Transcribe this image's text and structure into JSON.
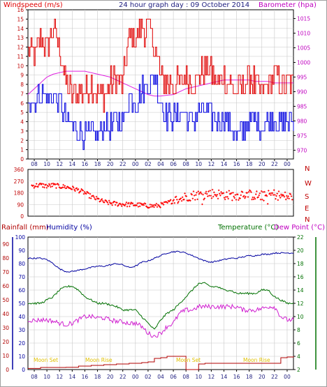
{
  "title": "24 hour graph day : 09 October 2014",
  "x_ticks": [
    "08",
    "10",
    "12",
    "14",
    "16",
    "18",
    "20",
    "22",
    "00",
    "02",
    "04",
    "06",
    "08",
    "10",
    "12",
    "14",
    "16",
    "18",
    "20",
    "22",
    "00"
  ],
  "wind": {
    "label_left": "Windspeed (m/s)",
    "label_right": "Barometer (hpa)",
    "left_ticks": [
      "16",
      "15",
      "14",
      "13",
      "12",
      "11",
      "10",
      "9",
      "8",
      "7",
      "6",
      "5",
      "4",
      "3",
      "2",
      "1",
      "0"
    ],
    "right_ticks": [
      "1015",
      "1010",
      "1005",
      "1000",
      "995",
      "990",
      "985",
      "980",
      "975",
      "970"
    ]
  },
  "dir": {
    "left_ticks": [
      "360",
      "270",
      "180",
      "90",
      "0"
    ],
    "right_ticks": [
      "N",
      "W",
      "S",
      "E",
      "N"
    ]
  },
  "bottom": {
    "label_rain": "Rainfall (mm)",
    "label_hum": "Humidity (%)",
    "label_temp": "Temperature (°C)",
    "label_dew": "Dew Point (°C)",
    "rain_ticks": [
      "90",
      "80",
      "70",
      "60",
      "50",
      "40",
      "30",
      "20",
      "10",
      "0"
    ],
    "hum_ticks": [
      "100",
      "90",
      "80",
      "70",
      "60",
      "50",
      "40",
      "30",
      "20",
      "10",
      "0"
    ],
    "temp_ticks": [
      "22",
      "20",
      "18",
      "16",
      "14",
      "12",
      "10",
      "8",
      "6",
      "4",
      "2"
    ],
    "moon": [
      "Moon Set",
      "Moon Rise",
      "Moon Set",
      "Moon Rise"
    ]
  },
  "colors": {
    "gust": "#e00000",
    "avg": "#0000e0",
    "baro": "#e020e0",
    "dir": "#ff0000",
    "humidity": "#0000a0",
    "temp": "#007000",
    "dew": "#d020d0",
    "rain": "#b00000",
    "moon": "#e0c000",
    "grid": "#c8c8c8",
    "axis_wind": "#c000c0"
  },
  "chart_data": [
    {
      "type": "line",
      "title": "24 hour graph day : 09 October 2014",
      "x_hours": [
        7,
        8,
        9,
        10,
        11,
        12,
        13,
        14,
        15,
        16,
        17,
        18,
        19,
        20,
        21,
        22,
        23,
        24,
        25,
        26,
        27,
        28,
        29,
        30,
        31,
        32,
        33,
        34,
        35,
        36,
        37,
        38,
        39,
        40,
        41,
        42,
        43,
        44,
        45,
        46,
        47,
        48,
        49
      ],
      "series": [
        {
          "name": "Windspeed (m/s)",
          "axis": "left",
          "values": [
            12,
            11,
            13,
            12,
            14,
            12,
            8,
            7,
            7,
            7,
            8,
            7,
            7,
            8,
            9,
            8,
            13,
            13,
            14,
            14,
            12,
            9,
            8,
            8,
            8,
            9,
            8,
            9,
            10,
            9,
            8,
            9,
            8,
            7,
            8,
            9,
            8,
            7,
            8,
            9,
            8,
            8,
            8
          ]
        },
        {
          "name": "Windspeed (m/s) avg",
          "axis": "left",
          "values": [
            6.5,
            6,
            7,
            6.5,
            7,
            6,
            4.5,
            3.5,
            2.8,
            2.6,
            2.8,
            2.5,
            3.5,
            3.5,
            4,
            3.8,
            7,
            6,
            7.5,
            8,
            9,
            6,
            4.5,
            4.5,
            5,
            4.5,
            4,
            5,
            5,
            4.5,
            4,
            4.5,
            3.5,
            2.5,
            3,
            4,
            4,
            3.5,
            4,
            4.5,
            3.5,
            4,
            4
          ]
        },
        {
          "name": "Barometer (hpa)",
          "axis": "right",
          "values": [
            989,
            991,
            993,
            995,
            996,
            996.5,
            997,
            997,
            997,
            997,
            996.5,
            996,
            995.5,
            995,
            994,
            993,
            992,
            991,
            990,
            989,
            988.5,
            988.5,
            988.8,
            989,
            990,
            991,
            991.5,
            992,
            992.5,
            993,
            993.5,
            994,
            994,
            994,
            994,
            994,
            993.5,
            993.5,
            993.5,
            993,
            993,
            993,
            993
          ]
        }
      ],
      "ylim_left": [
        0,
        16
      ],
      "ylim_right": [
        967,
        1018
      ]
    },
    {
      "type": "scatter",
      "series": [
        {
          "name": "Wind direction",
          "x_hours": [
            7,
            8,
            9,
            10,
            11,
            12,
            13,
            14,
            15,
            16,
            17,
            18,
            19,
            20,
            21,
            22,
            23,
            24,
            25,
            26,
            27,
            28,
            29,
            30,
            31,
            32,
            33,
            34,
            35,
            36,
            37,
            38,
            39,
            40,
            41,
            42,
            43,
            44,
            45,
            46,
            47,
            48,
            49
          ],
          "values": [
            230,
            235,
            240,
            232,
            238,
            230,
            225,
            215,
            200,
            180,
            150,
            130,
            110,
            100,
            95,
            92,
            90,
            88,
            85,
            80,
            78,
            85,
            100,
            120,
            130,
            150,
            160,
            165,
            170,
            175,
            170,
            165,
            160,
            155,
            175,
            165,
            160,
            150,
            160,
            170,
            155,
            150,
            145
          ]
        }
      ],
      "ylim": [
        0,
        360
      ]
    },
    {
      "type": "line",
      "x_hours": [
        7,
        8,
        9,
        10,
        11,
        12,
        13,
        14,
        15,
        16,
        17,
        18,
        19,
        20,
        21,
        22,
        23,
        24,
        25,
        26,
        27,
        28,
        29,
        30,
        31,
        32,
        33,
        34,
        35,
        36,
        37,
        38,
        39,
        40,
        41,
        42,
        43,
        44,
        45,
        46,
        47,
        48,
        49
      ],
      "series": [
        {
          "name": "Humidity (%)",
          "axis": "hum",
          "values": [
            84,
            84,
            84,
            83,
            80,
            76,
            74,
            74,
            75,
            76,
            77,
            78,
            78,
            79,
            80,
            79,
            77,
            78,
            81,
            82,
            84,
            86,
            88,
            89,
            89,
            88,
            86,
            84,
            82,
            81,
            82,
            83,
            84,
            84,
            85,
            86,
            86,
            87,
            87,
            88,
            88,
            88,
            88
          ]
        },
        {
          "name": "Temperature (°C)",
          "axis": "temp",
          "values": [
            12,
            12,
            12,
            12.5,
            13,
            14,
            14.5,
            14.6,
            14,
            13,
            12.5,
            12,
            12,
            11.8,
            11.5,
            11,
            11,
            11,
            10,
            9,
            8,
            9.5,
            10.5,
            11,
            12,
            13,
            14,
            15,
            15,
            14.5,
            14.5,
            14,
            14,
            13.5,
            13.5,
            13.5,
            13.5,
            14,
            14,
            13,
            12.5,
            12,
            12
          ]
        },
        {
          "name": "Dew Point (°C)",
          "axis": "temp",
          "values": [
            9.5,
            9.4,
            9.5,
            9.5,
            9.3,
            9,
            8.8,
            9,
            9.5,
            10,
            10,
            9.8,
            9.8,
            9.5,
            9.3,
            9.2,
            9,
            9,
            8.5,
            7.5,
            7,
            7.5,
            8.5,
            9,
            10.5,
            11,
            11,
            11.5,
            11.5,
            11.5,
            11.5,
            11.5,
            11.5,
            11.5,
            11,
            11,
            11,
            11.2,
            11.5,
            11.5,
            10,
            9.5,
            9.5
          ]
        },
        {
          "name": "Rainfall (mm)",
          "axis": "rain",
          "values": [
            0.8,
            0.8,
            1.5,
            1.5,
            1.5,
            1.5,
            1.6,
            1.6,
            2.5,
            2.5,
            3.0,
            3.0,
            3.5,
            3.5,
            4.0,
            4.0,
            4.5,
            4.5,
            5.0,
            5.5,
            8.0,
            8.5,
            9.5,
            9.5,
            9.5,
            0.0,
            0.0,
            4.0,
            4.5,
            4.5,
            4.5,
            4.5,
            4.5,
            4.5,
            4.5,
            4.5,
            4.5,
            4.5,
            4.5,
            4.5,
            8.5,
            9.0,
            9.5
          ]
        }
      ],
      "ylim_hum": [
        0,
        100
      ],
      "ylim_temp": [
        2,
        22
      ],
      "ylim_rain": [
        0,
        95
      ]
    }
  ]
}
